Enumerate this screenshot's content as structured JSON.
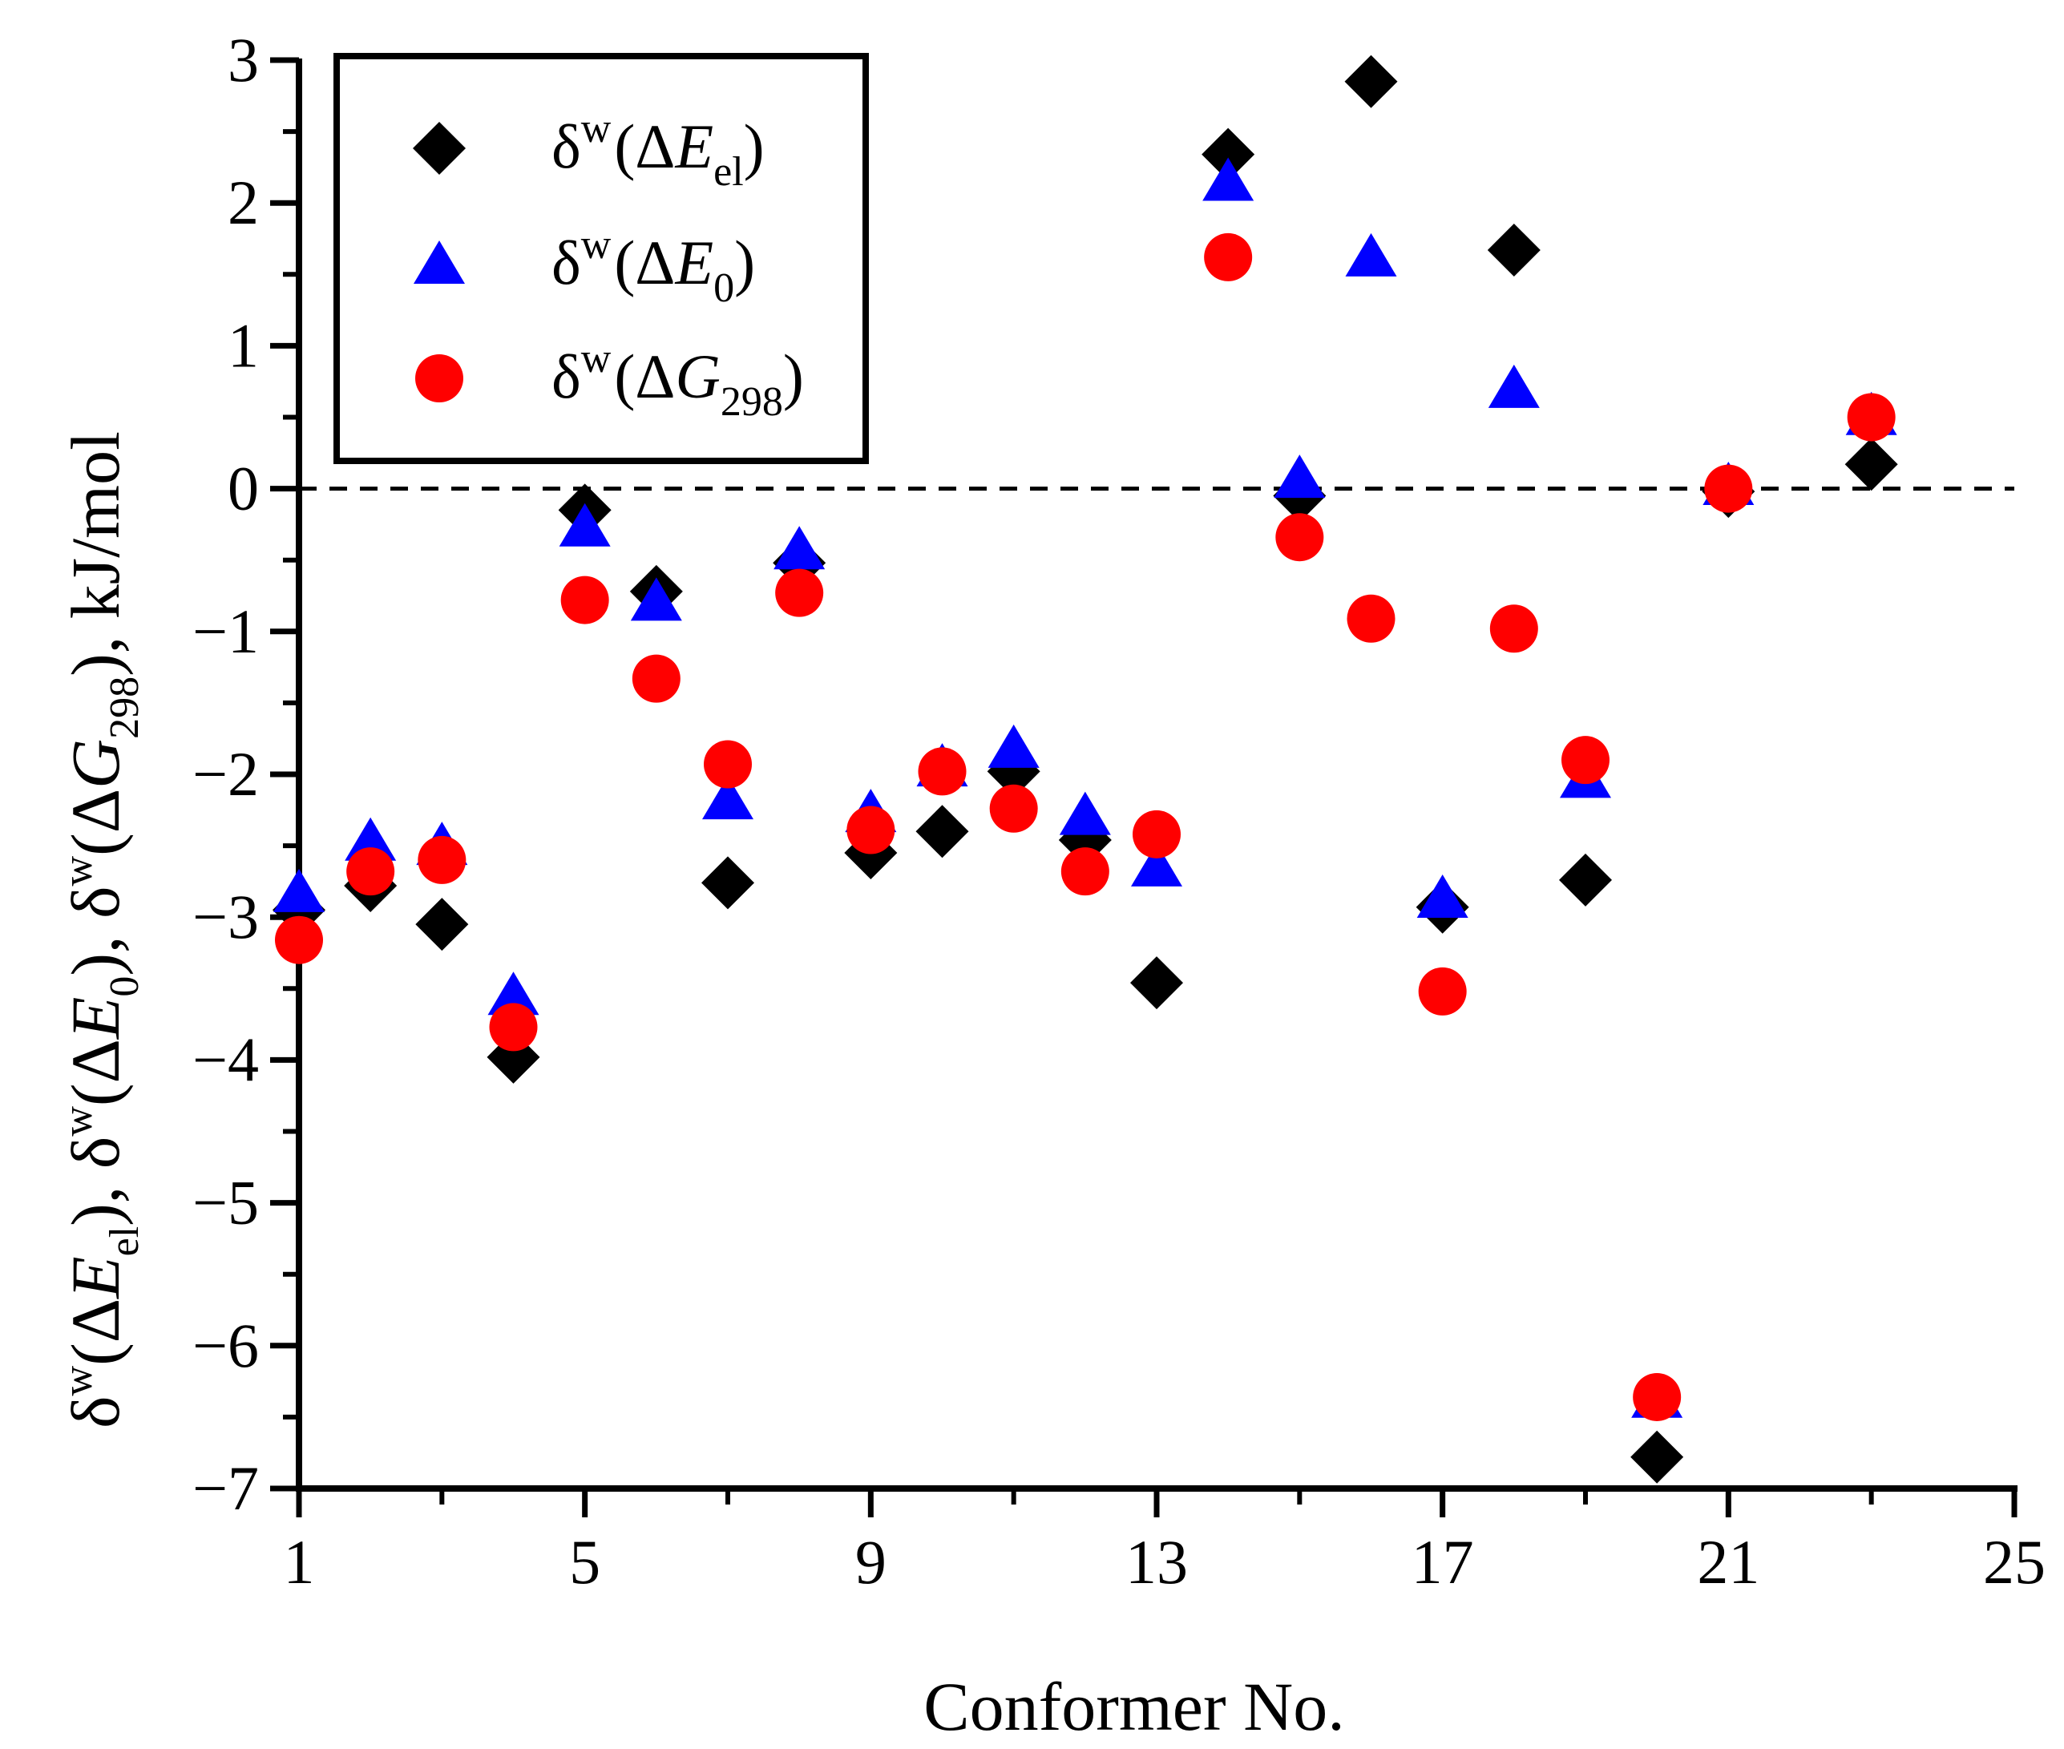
{
  "chart_data": {
    "type": "scatter",
    "title": "",
    "xlabel": "Conformer No.",
    "ylabel": "δw(ΔEel), δw(ΔE0), δw(ΔG298), kJ/mol",
    "xlim": [
      1,
      25
    ],
    "ylim": [
      -7,
      3
    ],
    "xticks": [
      1,
      5,
      9,
      13,
      17,
      21,
      25
    ],
    "yticks": [
      -7,
      -6,
      -5,
      -4,
      -3,
      -2,
      -1,
      0,
      1,
      2,
      3
    ],
    "x_minor_step": 2,
    "y_minor_step": 0.5,
    "reference_line": {
      "y": 0,
      "style": "dashed"
    },
    "legend_position": "top-left",
    "x": [
      1,
      2,
      3,
      4,
      5,
      6,
      7,
      8,
      9,
      10,
      11,
      12,
      13,
      14,
      15,
      16,
      17,
      18,
      19,
      20,
      21,
      22,
      23
    ],
    "series": [
      {
        "name": "δw(ΔEel)",
        "marker": "diamond",
        "color": "#000000",
        "values": [
          -2.95,
          -2.78,
          -3.05,
          -3.98,
          -0.15,
          -0.72,
          -2.76,
          -0.52,
          -2.55,
          -2.4,
          -1.98,
          -2.46,
          -3.46,
          2.34,
          -0.05,
          2.85,
          -2.93,
          1.67,
          -2.74,
          -6.78,
          -0.02,
          null,
          0.17
        ]
      },
      {
        "name": "δw(ΔE0)",
        "marker": "triangle",
        "color": "#0000ff",
        "values": [
          -2.83,
          -2.47,
          -2.5,
          -3.55,
          -0.27,
          -0.79,
          -2.18,
          -0.43,
          -2.27,
          -1.95,
          -1.82,
          -2.29,
          -2.65,
          2.15,
          0.07,
          1.62,
          -2.87,
          0.7,
          -2.03,
          -6.37,
          0.02,
          null,
          0.51
        ]
      },
      {
        "name": "δw(ΔG298)",
        "marker": "circle",
        "color": "#ff0000",
        "values": [
          -3.16,
          -2.68,
          -2.6,
          -3.77,
          -0.78,
          -1.33,
          -1.93,
          -0.73,
          -2.39,
          -1.98,
          -2.24,
          -2.68,
          -2.42,
          1.62,
          -0.34,
          -0.91,
          -3.52,
          -0.98,
          -1.9,
          -6.36,
          0.0,
          null,
          0.5
        ]
      }
    ],
    "legend": [
      {
        "base": "δ",
        "sup": "w",
        "open": "(Δ",
        "var": "E",
        "sub": "el",
        "close": ")"
      },
      {
        "base": "δ",
        "sup": "w",
        "open": "(Δ",
        "var": "E",
        "sub": "0",
        "close": ")"
      },
      {
        "base": "δ",
        "sup": "w",
        "open": "(Δ",
        "var": "G",
        "sub": "298",
        "close": ")"
      }
    ],
    "ylabel_parts": [
      {
        "t": "δ",
        "k": "n"
      },
      {
        "t": "w",
        "k": "sup"
      },
      {
        "t": "(Δ",
        "k": "n"
      },
      {
        "t": "E",
        "k": "i"
      },
      {
        "t": "el",
        "k": "sub"
      },
      {
        "t": "), ",
        "k": "n"
      },
      {
        "t": "δ",
        "k": "n"
      },
      {
        "t": "w",
        "k": "sup"
      },
      {
        "t": "(Δ",
        "k": "n"
      },
      {
        "t": "E",
        "k": "i"
      },
      {
        "t": "0",
        "k": "sub"
      },
      {
        "t": "), ",
        "k": "n"
      },
      {
        "t": "δ",
        "k": "n"
      },
      {
        "t": "w",
        "k": "sup"
      },
      {
        "t": "(Δ",
        "k": "n"
      },
      {
        "t": "G",
        "k": "i"
      },
      {
        "t": "298",
        "k": "sub"
      },
      {
        "t": "), kJ/mol",
        "k": "n"
      }
    ]
  }
}
